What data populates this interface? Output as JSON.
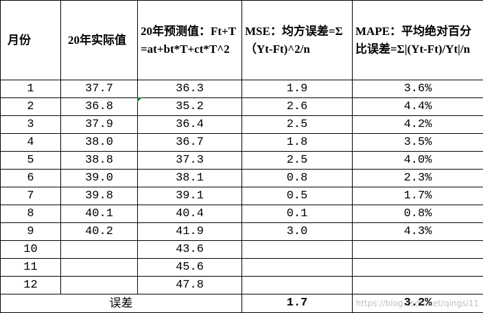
{
  "table": {
    "header": [
      "月份",
      "20年实际值",
      "20年预测值：Ft+T=at+bt*T+ct*T^2",
      "MSE：均方误差=Σ（Yt-Ft)^2/n",
      "MAPE：平均绝对百分比误差=Σ|(Yt-Ft)/Yt|/n"
    ],
    "rows": [
      [
        "1",
        "37.7",
        "36.3",
        "1.9",
        "3.6%"
      ],
      [
        "2",
        "36.8",
        "35.2",
        "2.6",
        "4.4%"
      ],
      [
        "3",
        "37.9",
        "36.4",
        "2.5",
        "4.2%"
      ],
      [
        "4",
        "38.0",
        "36.7",
        "1.8",
        "3.5%"
      ],
      [
        "5",
        "38.8",
        "37.3",
        "2.5",
        "4.0%"
      ],
      [
        "6",
        "39.0",
        "38.1",
        "0.8",
        "2.3%"
      ],
      [
        "7",
        "39.8",
        "39.1",
        "0.5",
        "1.7%"
      ],
      [
        "8",
        "40.1",
        "40.4",
        "0.1",
        "0.8%"
      ],
      [
        "9",
        "40.2",
        "41.9",
        "3.0",
        "4.3%"
      ],
      [
        "10",
        null,
        "43.6",
        null,
        null
      ],
      [
        "11",
        null,
        "45.6",
        null,
        null
      ],
      [
        "12",
        null,
        "47.8",
        null,
        null
      ]
    ],
    "footer": {
      "label": "误差",
      "mse": "1.7",
      "mape": "3.2%"
    }
  },
  "watermark": "https://blog.csdn.net/qingsi11"
}
